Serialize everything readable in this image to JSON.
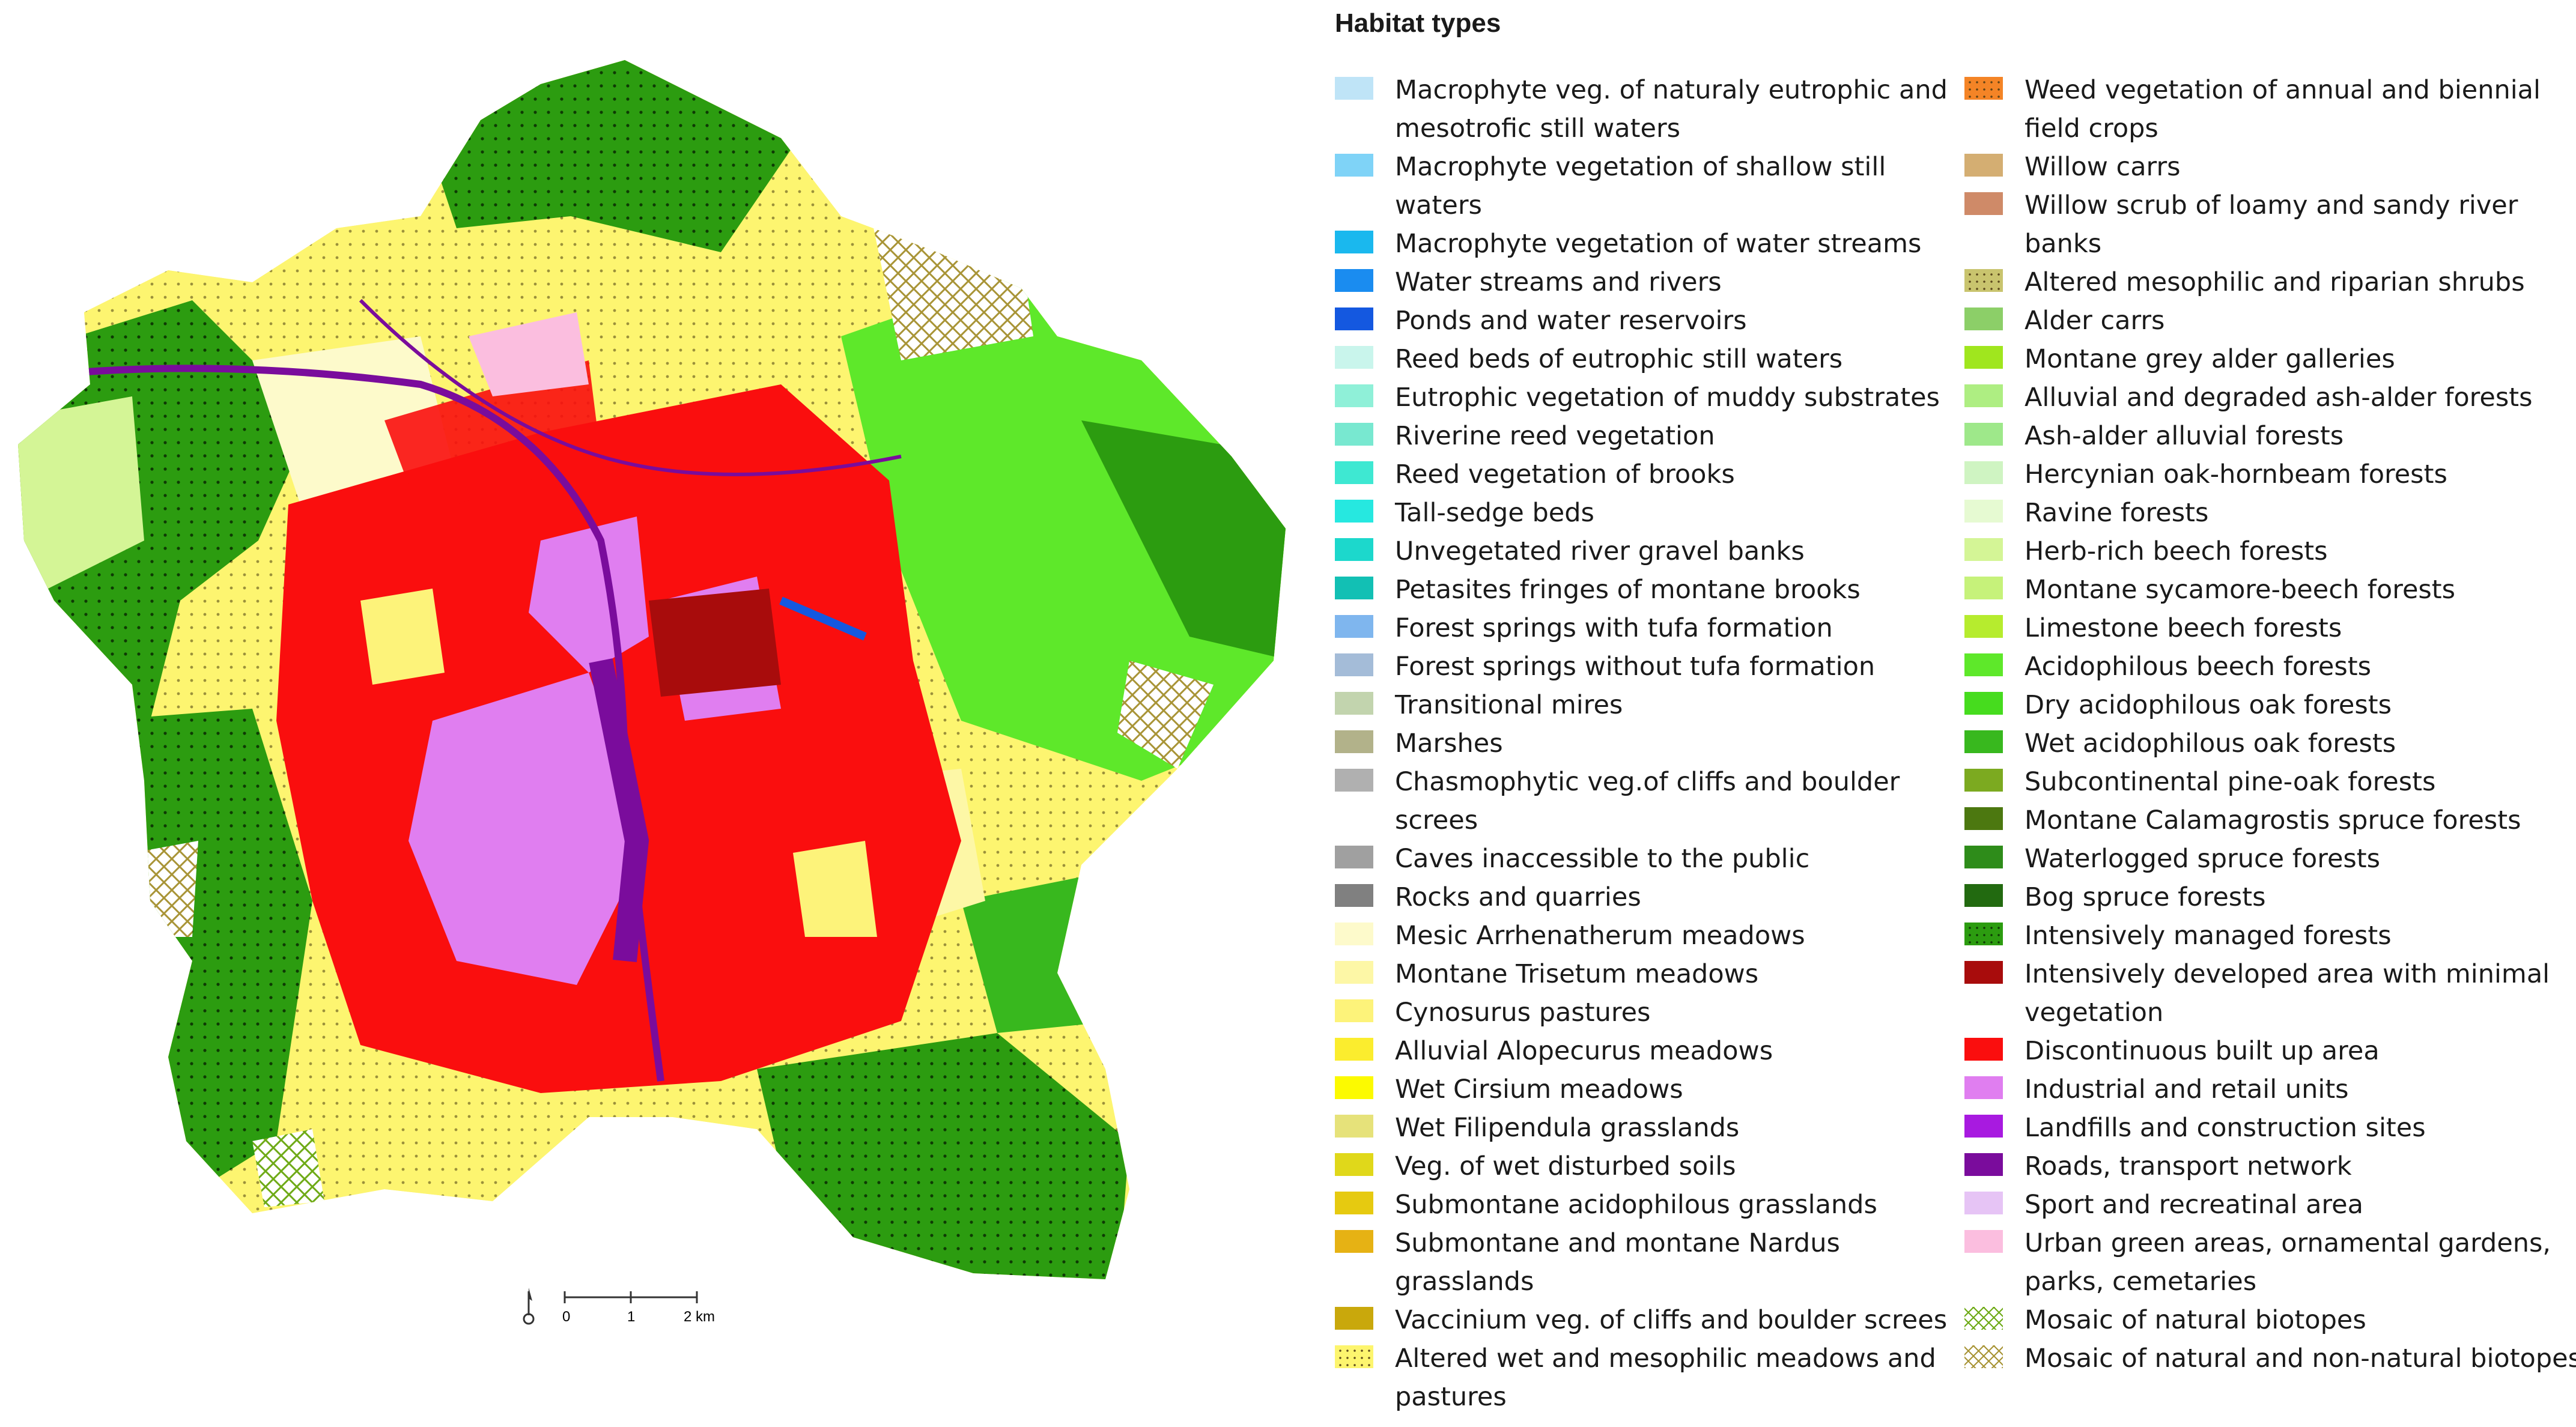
{
  "title": "Habitat types",
  "scale_bar": {
    "ticks": [
      "0",
      "1",
      "2 km"
    ]
  },
  "legend": {
    "columns": [
      [
        {
          "label": "Macrophyte veg. of naturaly eutrophic and mesotrofic still waters",
          "color": "#bfe4f7"
        },
        {
          "label": "Macrophyte vegetation of shallow still waters",
          "color": "#7fd3f7"
        },
        {
          "label": "Macrophyte vegetation of water streams",
          "color": "#1ab8ee"
        },
        {
          "label": "Water streams and rivers",
          "color": "#1a8cf0"
        },
        {
          "label": "Ponds and water reservoirs",
          "color": "#1458e0"
        },
        {
          "label": "Reed beds of eutrophic still waters",
          "color": "#c9f5ec"
        },
        {
          "label": "Eutrophic vegetation of muddy substrates",
          "color": "#8ff0d8"
        },
        {
          "label": "Riverine reed vegetation",
          "color": "#78e8d0"
        },
        {
          "label": "Reed vegetation of brooks",
          "color": "#3ee8d2"
        },
        {
          "label": "Tall-sedge beds",
          "color": "#26e8e0"
        },
        {
          "label": "Unvegetated river gravel banks",
          "color": "#1cd8cc"
        },
        {
          "label": "Petasites fringes of montane brooks",
          "color": "#12c0b4"
        },
        {
          "label": "Forest springs with tufa formation",
          "color": "#7fb6ee"
        },
        {
          "label": "Forest springs without tufa formation",
          "color": "#a4bcd8"
        },
        {
          "label": "Transitional mires",
          "color": "#c2d4ae"
        },
        {
          "label": "Marshes",
          "color": "#b2b28a"
        },
        {
          "label": "Chasmophytic veg.of cliffs and boulder screes",
          "color": "#b0b0b0"
        },
        {
          "label": "Caves inaccessible to the public",
          "color": "#a0a0a0"
        },
        {
          "label": "Rocks and quarries",
          "color": "#808080"
        },
        {
          "label": "Mesic Arrhenatherum meadows",
          "color": "#fdfacb"
        },
        {
          "label": "Montane Trisetum meadows",
          "color": "#fdf7a6"
        },
        {
          "label": "Cynosurus pastures",
          "color": "#fdf37a"
        },
        {
          "label": "Alluvial Alopecurus meadows",
          "color": "#fbed2e"
        },
        {
          "label": "Wet Cirsium meadows",
          "color": "#fcfa00"
        },
        {
          "label": "Wet Filipendula grasslands",
          "color": "#e6e27a"
        },
        {
          "label": "Veg. of wet disturbed soils",
          "color": "#e0d81a"
        },
        {
          "label": "Submontane acidophilous grasslands",
          "color": "#e6ca10"
        },
        {
          "label": "Submontane and montane Nardus grasslands",
          "color": "#e6b214"
        },
        {
          "label": "Vaccinium veg. of cliffs and boulder screes",
          "color": "#c9a80c"
        },
        {
          "label": "Altered wet and mesophilic meadows and pastures",
          "color": "#fdf56e",
          "pattern": "dots"
        }
      ],
      [
        {
          "label": "Weed vegetation of annual and biennial field crops",
          "color": "#f48426",
          "pattern": "dots"
        },
        {
          "label": "Willow carrs",
          "color": "#d4ae72"
        },
        {
          "label": "Willow scrub of loamy and sandy river banks",
          "color": "#cf8a68"
        },
        {
          "label": "Altered mesophilic and riparian shrubs",
          "color": "#c9c46e",
          "pattern": "dots"
        },
        {
          "label": "Alder carrs",
          "color": "#8ccf68"
        },
        {
          "label": "Montane grey alder galleries",
          "color": "#a0e61e"
        },
        {
          "label": "Alluvial and degraded  ash-alder forests",
          "color": "#aeee82"
        },
        {
          "label": "Ash-alder alluvial forests",
          "color": "#9ee88a"
        },
        {
          "label": "Hercynian oak-hornbeam forests",
          "color": "#cff4c2"
        },
        {
          "label": "Ravine forests",
          "color": "#e6fad2"
        },
        {
          "label": "Herb-rich beech forests",
          "color": "#d4f596"
        },
        {
          "label": "Montane sycamore-beech forests",
          "color": "#c6f27a"
        },
        {
          "label": "Limestone beech forests",
          "color": "#b6ec2e"
        },
        {
          "label": "Acidophilous beech forests",
          "color": "#5ee82a"
        },
        {
          "label": "Dry acidophilous oak forests",
          "color": "#46dc1e"
        },
        {
          "label": "Wet acidophilous oak forests",
          "color": "#38b81e"
        },
        {
          "label": "Subcontinental pine-oak forests",
          "color": "#7caa20"
        },
        {
          "label": "Montane Calamagrostis spruce forests",
          "color": "#4c7810"
        },
        {
          "label": "Waterlogged spruce forests",
          "color": "#2e8c1a"
        },
        {
          "label": "Bog spruce forests",
          "color": "#226a10"
        },
        {
          "label": "Intensively managed forests",
          "color": "#2c9c10",
          "pattern": "dots-dark"
        },
        {
          "label": "Intensively developed area with minimal vegetation",
          "color": "#a80c0c"
        },
        {
          "label": "Discontinuous built up area",
          "color": "#fa0e0e"
        },
        {
          "label": "Industrial and retail units",
          "color": "#e07ef0"
        },
        {
          "label": "Landfills and construction sites",
          "color": "#a81ae0"
        },
        {
          "label": "Roads, transport network",
          "color": "#7a0c9c"
        },
        {
          "label": "Sport and recreatinal area",
          "color": "#e6c4f5"
        },
        {
          "label": "Urban green areas, ornamental gardens, parks, cemetaries",
          "color": "#fbbedf"
        },
        {
          "label": "Mosaic of natural biotopes",
          "color": "#6eaa16",
          "pattern": "cross-hatch"
        },
        {
          "label": "Mosaic of natural and non-natural biotopes",
          "color": "#a89436",
          "pattern": "cross-hatch"
        }
      ]
    ]
  }
}
